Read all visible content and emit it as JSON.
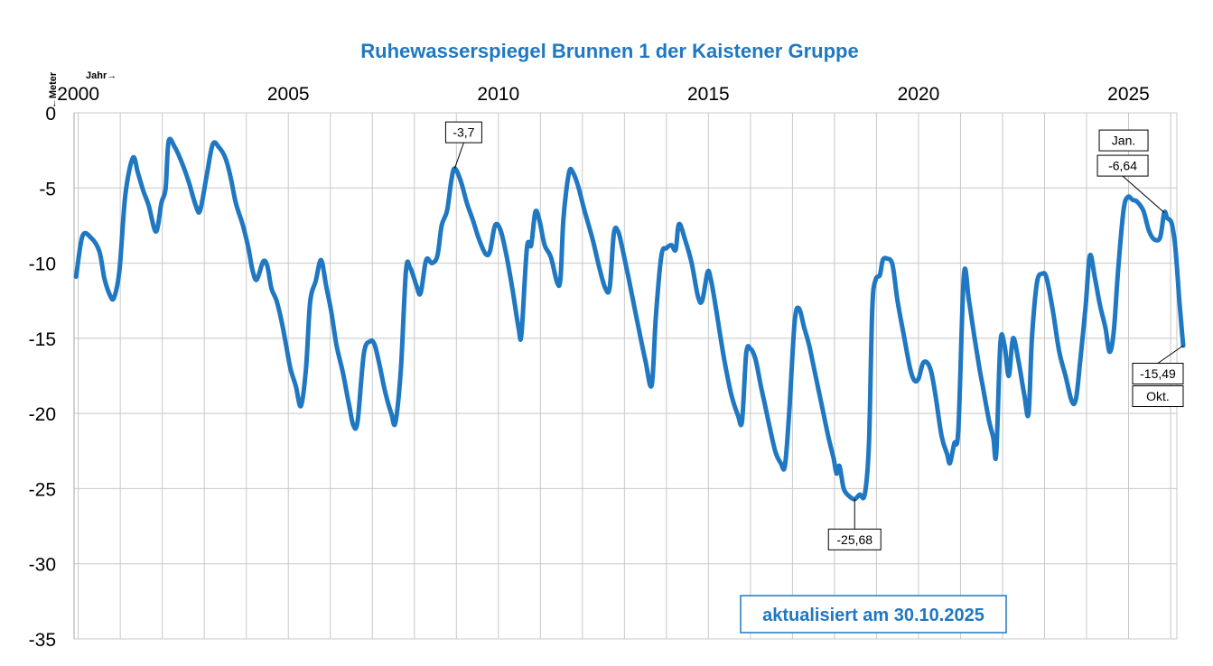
{
  "chart_data": {
    "type": "line",
    "title": "Ruhewasserspiegel Brunnen 1 der Kaistener Gruppe",
    "xlabel": "Jahr→",
    "ylabel": "←Meter",
    "xlim": [
      1999.9,
      2026.15
    ],
    "ylim": [
      -35,
      0
    ],
    "x_ticks": [
      2000,
      2005,
      2010,
      2015,
      2020,
      2025
    ],
    "x_tick_labels": [
      "2000",
      "2005",
      "2010",
      "2015",
      "2020",
      "2025"
    ],
    "y_ticks": [
      0,
      -5,
      -10,
      -15,
      -20,
      -25,
      -30,
      -35
    ],
    "y_tick_labels": [
      "0",
      "-5",
      "-10",
      "-15",
      "-20",
      "-25",
      "-30",
      "-35"
    ],
    "grid": true,
    "line_color": "#1f78c1",
    "series": [
      {
        "name": "Ruhewasserspiegel",
        "points": [
          [
            1999.95,
            -10.9
          ],
          [
            2000.1,
            -8.2
          ],
          [
            2000.3,
            -8.3
          ],
          [
            2000.5,
            -9.2
          ],
          [
            2000.62,
            -11.0
          ],
          [
            2000.75,
            -12.1
          ],
          [
            2000.85,
            -12.3
          ],
          [
            2000.98,
            -10.5
          ],
          [
            2001.12,
            -5.5
          ],
          [
            2001.3,
            -3.0
          ],
          [
            2001.42,
            -4.0
          ],
          [
            2001.55,
            -5.2
          ],
          [
            2001.68,
            -6.2
          ],
          [
            2001.85,
            -7.9
          ],
          [
            2001.98,
            -6.0
          ],
          [
            2002.08,
            -5.0
          ],
          [
            2002.15,
            -1.9
          ],
          [
            2002.3,
            -2.3
          ],
          [
            2002.45,
            -3.2
          ],
          [
            2002.62,
            -4.5
          ],
          [
            2002.8,
            -6.2
          ],
          [
            2002.9,
            -6.5
          ],
          [
            2003.05,
            -4.3
          ],
          [
            2003.2,
            -2.1
          ],
          [
            2003.35,
            -2.3
          ],
          [
            2003.5,
            -3.0
          ],
          [
            2003.62,
            -4.2
          ],
          [
            2003.75,
            -6.0
          ],
          [
            2003.92,
            -7.5
          ],
          [
            2004.05,
            -9.0
          ],
          [
            2004.15,
            -10.5
          ],
          [
            2004.25,
            -11.1
          ],
          [
            2004.4,
            -9.9
          ],
          [
            2004.5,
            -10.2
          ],
          [
            2004.6,
            -11.7
          ],
          [
            2004.72,
            -12.5
          ],
          [
            2004.85,
            -14.0
          ],
          [
            2004.95,
            -15.5
          ],
          [
            2005.05,
            -17.0
          ],
          [
            2005.18,
            -18.2
          ],
          [
            2005.3,
            -19.5
          ],
          [
            2005.42,
            -17.0
          ],
          [
            2005.52,
            -12.6
          ],
          [
            2005.65,
            -11.2
          ],
          [
            2005.78,
            -9.8
          ],
          [
            2005.9,
            -11.5
          ],
          [
            2006.02,
            -13.2
          ],
          [
            2006.15,
            -15.5
          ],
          [
            2006.3,
            -17.3
          ],
          [
            2006.45,
            -19.5
          ],
          [
            2006.55,
            -20.8
          ],
          [
            2006.65,
            -20.5
          ],
          [
            2006.8,
            -16.0
          ],
          [
            2006.95,
            -15.2
          ],
          [
            2007.05,
            -15.4
          ],
          [
            2007.15,
            -16.5
          ],
          [
            2007.3,
            -18.5
          ],
          [
            2007.45,
            -20.0
          ],
          [
            2007.55,
            -20.6
          ],
          [
            2007.68,
            -17.0
          ],
          [
            2007.8,
            -10.5
          ],
          [
            2007.9,
            -10.3
          ],
          [
            2008.05,
            -11.5
          ],
          [
            2008.15,
            -12.0
          ],
          [
            2008.28,
            -9.8
          ],
          [
            2008.42,
            -10.0
          ],
          [
            2008.55,
            -9.5
          ],
          [
            2008.65,
            -7.5
          ],
          [
            2008.78,
            -6.5
          ],
          [
            2008.88,
            -4.5
          ],
          [
            2008.96,
            -3.7
          ],
          [
            2009.1,
            -4.5
          ],
          [
            2009.25,
            -6.0
          ],
          [
            2009.4,
            -7.2
          ],
          [
            2009.55,
            -8.5
          ],
          [
            2009.7,
            -9.4
          ],
          [
            2009.8,
            -9.2
          ],
          [
            2009.92,
            -7.5
          ],
          [
            2010.05,
            -7.8
          ],
          [
            2010.2,
            -9.6
          ],
          [
            2010.35,
            -12.0
          ],
          [
            2010.48,
            -14.3
          ],
          [
            2010.55,
            -14.7
          ],
          [
            2010.68,
            -9.0
          ],
          [
            2010.78,
            -8.8
          ],
          [
            2010.88,
            -6.6
          ],
          [
            2010.98,
            -7.2
          ],
          [
            2011.1,
            -8.8
          ],
          [
            2011.25,
            -9.6
          ],
          [
            2011.4,
            -11.3
          ],
          [
            2011.48,
            -11.0
          ],
          [
            2011.55,
            -7.0
          ],
          [
            2011.68,
            -4.0
          ],
          [
            2011.78,
            -4.0
          ],
          [
            2011.9,
            -4.9
          ],
          [
            2012.05,
            -6.5
          ],
          [
            2012.25,
            -8.5
          ],
          [
            2012.42,
            -10.5
          ],
          [
            2012.55,
            -11.7
          ],
          [
            2012.65,
            -11.6
          ],
          [
            2012.75,
            -8.0
          ],
          [
            2012.85,
            -7.9
          ],
          [
            2012.95,
            -9.0
          ],
          [
            2013.1,
            -11.0
          ],
          [
            2013.3,
            -13.8
          ],
          [
            2013.5,
            -16.5
          ],
          [
            2013.65,
            -18.1
          ],
          [
            2013.75,
            -13.5
          ],
          [
            2013.88,
            -9.5
          ],
          [
            2014.0,
            -9.0
          ],
          [
            2014.12,
            -8.8
          ],
          [
            2014.22,
            -9.1
          ],
          [
            2014.3,
            -7.4
          ],
          [
            2014.45,
            -8.5
          ],
          [
            2014.6,
            -10.0
          ],
          [
            2014.75,
            -12.2
          ],
          [
            2014.85,
            -12.5
          ],
          [
            2014.98,
            -10.6
          ],
          [
            2015.05,
            -11.0
          ],
          [
            2015.15,
            -12.5
          ],
          [
            2015.28,
            -14.8
          ],
          [
            2015.4,
            -16.8
          ],
          [
            2015.55,
            -18.8
          ],
          [
            2015.7,
            -20.1
          ],
          [
            2015.8,
            -20.5
          ],
          [
            2015.9,
            -16.0
          ],
          [
            2016.0,
            -15.7
          ],
          [
            2016.12,
            -16.4
          ],
          [
            2016.25,
            -18.2
          ],
          [
            2016.35,
            -19.5
          ],
          [
            2016.48,
            -21.2
          ],
          [
            2016.6,
            -22.6
          ],
          [
            2016.72,
            -23.3
          ],
          [
            2016.82,
            -23.5
          ],
          [
            2016.92,
            -20.0
          ],
          [
            2017.05,
            -14.0
          ],
          [
            2017.15,
            -13.0
          ],
          [
            2017.28,
            -14.3
          ],
          [
            2017.4,
            -15.5
          ],
          [
            2017.55,
            -17.5
          ],
          [
            2017.7,
            -19.5
          ],
          [
            2017.85,
            -21.5
          ],
          [
            2017.98,
            -23.0
          ],
          [
            2018.05,
            -24.0
          ],
          [
            2018.12,
            -23.5
          ],
          [
            2018.22,
            -25.0
          ],
          [
            2018.35,
            -25.5
          ],
          [
            2018.48,
            -25.7
          ],
          [
            2018.6,
            -25.4
          ],
          [
            2018.72,
            -25.4
          ],
          [
            2018.82,
            -22.0
          ],
          [
            2018.9,
            -13.0
          ],
          [
            2018.98,
            -11.1
          ],
          [
            2019.08,
            -10.8
          ],
          [
            2019.15,
            -9.8
          ],
          [
            2019.25,
            -9.7
          ],
          [
            2019.38,
            -10.1
          ],
          [
            2019.5,
            -12.5
          ],
          [
            2019.65,
            -14.8
          ],
          [
            2019.8,
            -17.0
          ],
          [
            2019.9,
            -17.8
          ],
          [
            2020.0,
            -17.7
          ],
          [
            2020.1,
            -16.7
          ],
          [
            2020.2,
            -16.6
          ],
          [
            2020.3,
            -17.2
          ],
          [
            2020.4,
            -18.7
          ],
          [
            2020.55,
            -21.5
          ],
          [
            2020.68,
            -22.7
          ],
          [
            2020.75,
            -23.3
          ],
          [
            2020.85,
            -22.0
          ],
          [
            2020.95,
            -21.0
          ],
          [
            2021.08,
            -10.8
          ],
          [
            2021.2,
            -12.5
          ],
          [
            2021.32,
            -14.7
          ],
          [
            2021.45,
            -17.0
          ],
          [
            2021.55,
            -18.5
          ],
          [
            2021.68,
            -20.5
          ],
          [
            2021.78,
            -21.6
          ],
          [
            2021.85,
            -22.7
          ],
          [
            2021.95,
            -15.3
          ],
          [
            2022.05,
            -15.5
          ],
          [
            2022.15,
            -17.5
          ],
          [
            2022.25,
            -15.0
          ],
          [
            2022.38,
            -16.5
          ],
          [
            2022.52,
            -18.8
          ],
          [
            2022.62,
            -20.0
          ],
          [
            2022.7,
            -15.0
          ],
          [
            2022.82,
            -11.3
          ],
          [
            2022.95,
            -10.7
          ],
          [
            2023.05,
            -11.0
          ],
          [
            2023.2,
            -13.2
          ],
          [
            2023.35,
            -15.9
          ],
          [
            2023.5,
            -17.5
          ],
          [
            2023.65,
            -19.2
          ],
          [
            2023.75,
            -19.0
          ],
          [
            2023.85,
            -16.5
          ],
          [
            2023.98,
            -12.8
          ],
          [
            2024.08,
            -9.5
          ],
          [
            2024.2,
            -11.0
          ],
          [
            2024.32,
            -12.8
          ],
          [
            2024.45,
            -14.3
          ],
          [
            2024.55,
            -15.9
          ],
          [
            2024.65,
            -14.5
          ],
          [
            2024.75,
            -10.5
          ],
          [
            2024.88,
            -6.5
          ],
          [
            2024.98,
            -5.6
          ],
          [
            2025.1,
            -5.8
          ],
          [
            2025.2,
            -5.9
          ],
          [
            2025.35,
            -6.5
          ],
          [
            2025.48,
            -7.8
          ],
          [
            2025.6,
            -8.4
          ],
          [
            2025.75,
            -8.3
          ],
          [
            2025.85,
            -6.64
          ],
          [
            2025.92,
            -7.0
          ],
          [
            2026.02,
            -7.3
          ],
          [
            2026.1,
            -8.6
          ],
          [
            2026.15,
            -10.2
          ],
          [
            2026.2,
            -12.2
          ],
          [
            2026.25,
            -13.9
          ],
          [
            2026.3,
            -15.49
          ]
        ]
      }
    ],
    "annotations": [
      {
        "label": "-3,7",
        "x": 2008.96,
        "y": -3.7
      },
      {
        "label": "-25,68",
        "x": 2018.48,
        "y": -25.68
      },
      {
        "label": "Jan.",
        "x": 2025.85,
        "y": -6.64
      },
      {
        "label": "-6,64",
        "x": 2025.85,
        "y": -6.64
      },
      {
        "label": "-15,49",
        "x": 2026.3,
        "y": -15.49
      },
      {
        "label": "Okt.",
        "x": 2026.3,
        "y": -15.49
      }
    ],
    "stamp": "aktualisiert am 30.10.2025"
  }
}
